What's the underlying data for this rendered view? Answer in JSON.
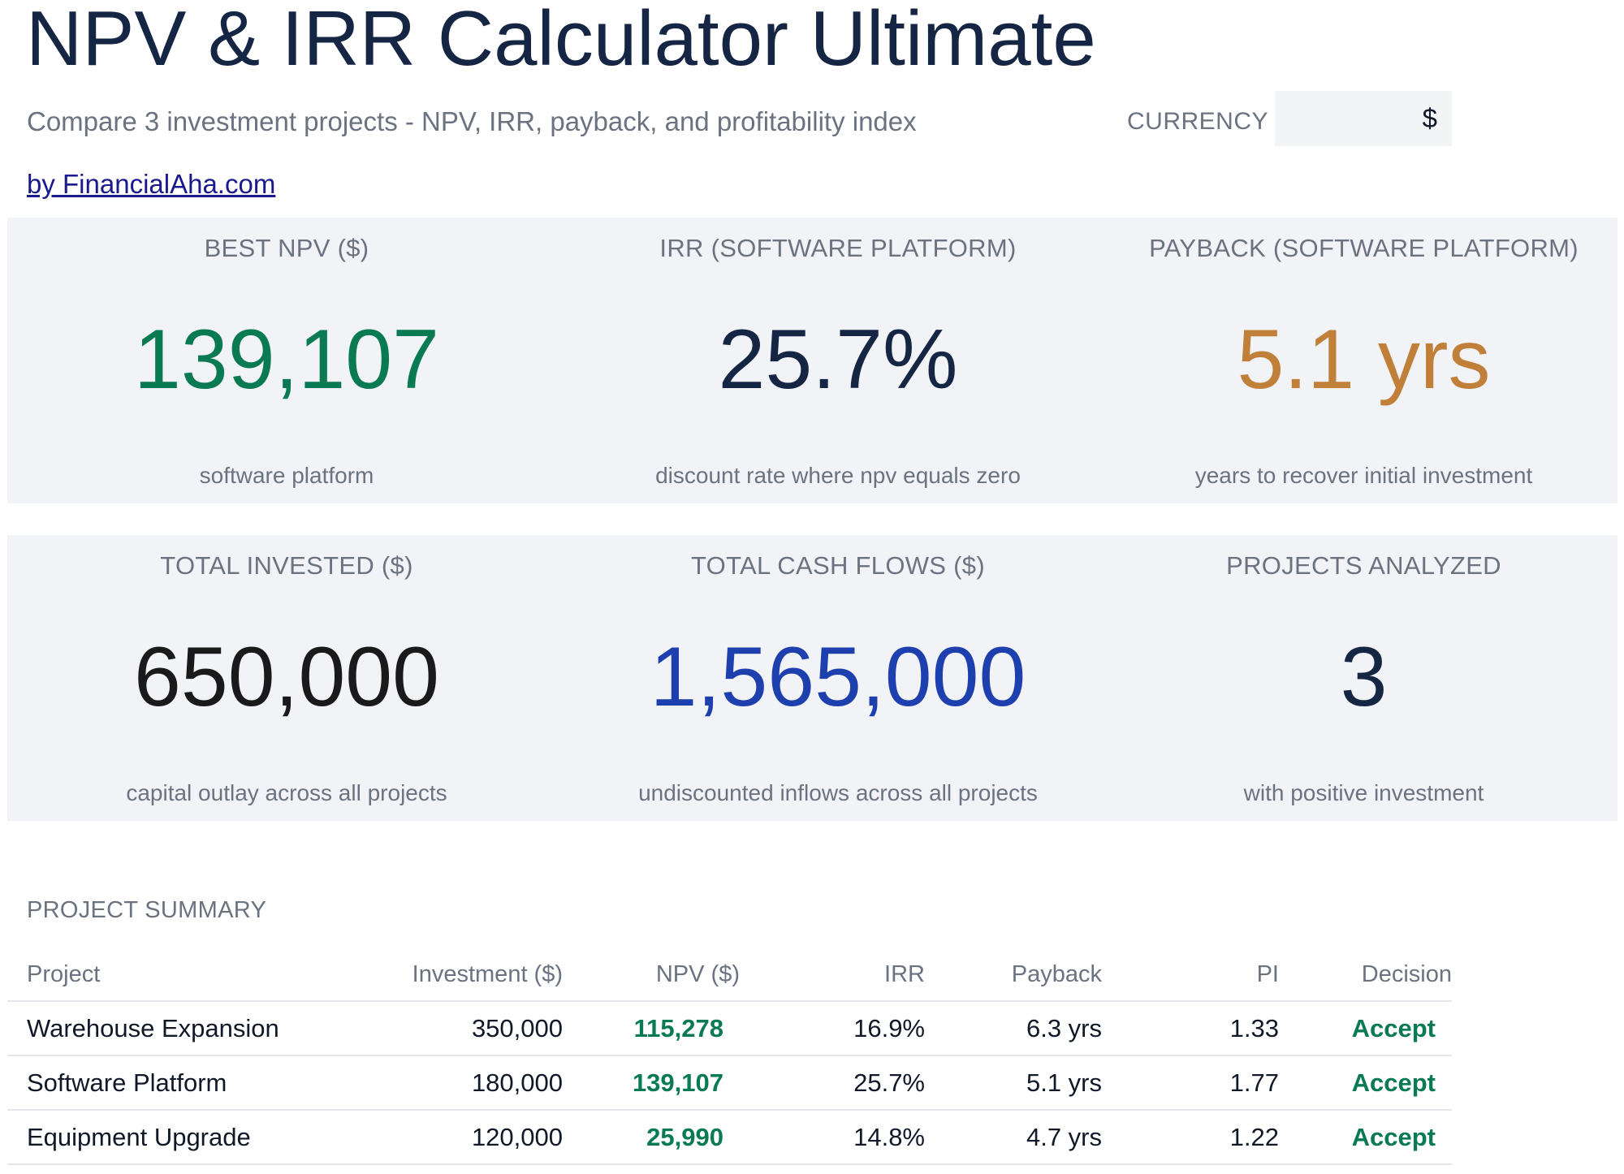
{
  "header": {
    "title": "NPV & IRR Calculator Ultimate",
    "subtitle": "Compare 3 investment projects - NPV, IRR, payback, and profitability index",
    "currency_label": "CURRENCY",
    "currency_value": "$",
    "author_link": "by FinancialAha.com"
  },
  "colors": {
    "positive": "#0a7a52",
    "navy": "#152544",
    "amber": "#c0803a",
    "black": "#1a1a1a",
    "blue": "#1e3fae",
    "panel": "#f1f3f6"
  },
  "kpis_row1": [
    {
      "label": "BEST NPV ($)",
      "value": "139,107",
      "sub": "software platform",
      "color": "#0a7a52"
    },
    {
      "label": "IRR (SOFTWARE PLATFORM)",
      "value": "25.7%",
      "sub": "discount rate where npv equals zero",
      "color": "#152544"
    },
    {
      "label": "PAYBACK (SOFTWARE PLATFORM)",
      "value": "5.1 yrs",
      "sub": "years to recover initial investment",
      "color": "#c0803a"
    }
  ],
  "kpis_row2": [
    {
      "label": "TOTAL INVESTED ($)",
      "value": "650,000",
      "sub": "capital outlay across all projects",
      "color": "#1a1a1a"
    },
    {
      "label": "TOTAL CASH FLOWS ($)",
      "value": "1,565,000",
      "sub": "undiscounted inflows across all projects",
      "color": "#1e3fae"
    },
    {
      "label": "PROJECTS ANALYZED",
      "value": "3",
      "sub": "with positive investment",
      "color": "#152544"
    }
  ],
  "summary": {
    "title": "PROJECT SUMMARY",
    "columns": [
      "Project",
      "Investment ($)",
      "NPV ($)",
      "IRR",
      "Payback",
      "PI",
      "Decision"
    ],
    "rows": [
      {
        "project": "Warehouse Expansion",
        "investment": "350,000",
        "npv": "115,278",
        "irr": "16.9%",
        "payback": "6.3 yrs",
        "pi": "1.33",
        "decision": "Accept"
      },
      {
        "project": "Software Platform",
        "investment": "180,000",
        "npv": "139,107",
        "irr": "25.7%",
        "payback": "5.1 yrs",
        "pi": "1.77",
        "decision": "Accept"
      },
      {
        "project": "Equipment Upgrade",
        "investment": "120,000",
        "npv": "25,990",
        "irr": "14.8%",
        "payback": "4.7 yrs",
        "pi": "1.22",
        "decision": "Accept"
      }
    ]
  }
}
